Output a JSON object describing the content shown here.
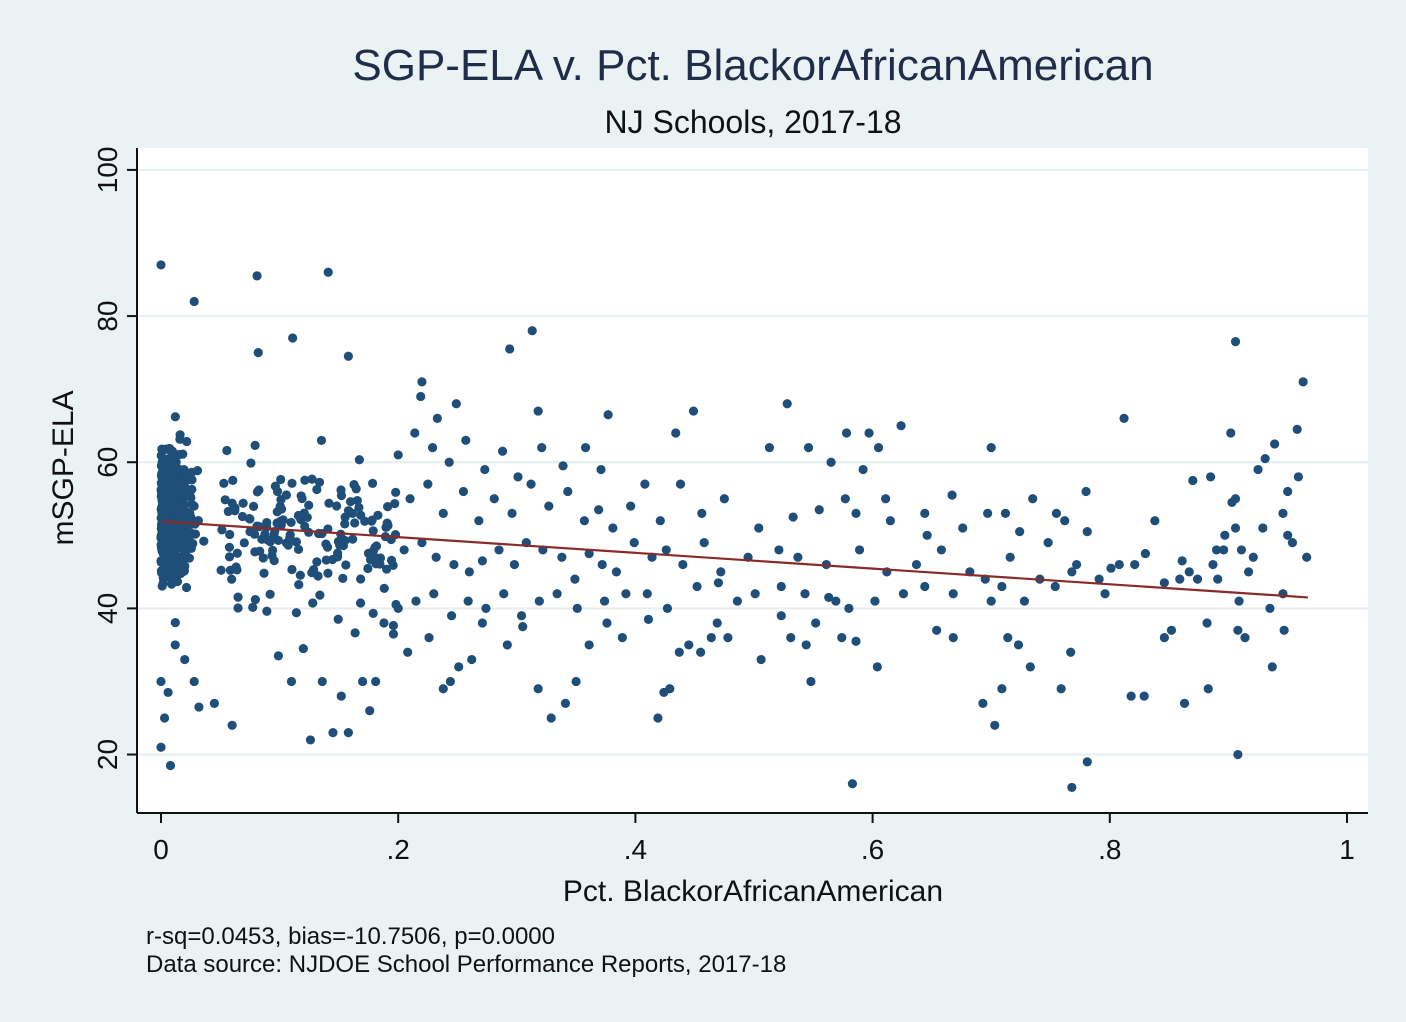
{
  "chart_data": {
    "type": "scatter",
    "title": "SGP-ELA v. Pct. BlackorAfricanAmerican",
    "subtitle": "NJ Schools, 2017-18",
    "xlabel": "Pct. BlackorAfricanAmerican",
    "ylabel": "mSGP-ELA",
    "xlim": [
      -0.02,
      1.02
    ],
    "ylim": [
      12,
      103
    ],
    "x_ticks": [
      {
        "value": 0,
        "label": "0"
      },
      {
        "value": 0.2,
        "label": ".2"
      },
      {
        "value": 0.4,
        "label": ".4"
      },
      {
        "value": 0.6,
        "label": ".6"
      },
      {
        "value": 0.8,
        "label": ".8"
      },
      {
        "value": 1,
        "label": "1"
      }
    ],
    "y_ticks": [
      {
        "value": 20,
        "label": "20"
      },
      {
        "value": 40,
        "label": "40"
      },
      {
        "value": 60,
        "label": "60"
      },
      {
        "value": 80,
        "label": "80"
      },
      {
        "value": 100,
        "label": "100"
      }
    ],
    "grid": true,
    "fit_line": {
      "x": [
        0,
        0.967
      ],
      "y": [
        51.9,
        41.5
      ],
      "color": "#8b2a2a"
    },
    "point_color": "#1f4e79",
    "notes": [
      "r-sq=0.0453, bias=-10.7506, p=0.0000",
      "Data source: NJDOE School Performance Reports, 2017-18"
    ],
    "points": [
      [
        0.0,
        87.0
      ],
      [
        0.081,
        85.5
      ],
      [
        0.141,
        86.0
      ],
      [
        0.028,
        82.0
      ],
      [
        0.313,
        78.0
      ],
      [
        0.111,
        77.0
      ],
      [
        0.906,
        76.5
      ],
      [
        0.294,
        75.5
      ],
      [
        0.082,
        75.0
      ],
      [
        0.158,
        74.5
      ],
      [
        0.963,
        71.0
      ],
      [
        0.22,
        71.0
      ],
      [
        0.528,
        68.0
      ],
      [
        0.449,
        67.0
      ],
      [
        0.318,
        67.0
      ],
      [
        0.377,
        66.5
      ],
      [
        0.812,
        66.0
      ],
      [
        0.624,
        65.0
      ],
      [
        0.958,
        64.5
      ],
      [
        0.434,
        64.0
      ],
      [
        0.578,
        64.0
      ],
      [
        0.597,
        64.0
      ],
      [
        0.902,
        64.0
      ],
      [
        0.939,
        62.5
      ],
      [
        0.7,
        62.0
      ],
      [
        0.513,
        62.0
      ],
      [
        0.546,
        62.0
      ],
      [
        0.605,
        62.0
      ],
      [
        0.358,
        62.0
      ],
      [
        0.931,
        60.5
      ],
      [
        0.565,
        60.0
      ],
      [
        0.925,
        59.0
      ],
      [
        0.592,
        59.0
      ],
      [
        0.371,
        59.0
      ],
      [
        0.95,
        56.0
      ],
      [
        0.78,
        56.0
      ],
      [
        0.667,
        55.5
      ],
      [
        0.906,
        55.0
      ],
      [
        0.611,
        55.0
      ],
      [
        0.735,
        55.0
      ],
      [
        0.577,
        55.0
      ],
      [
        0.903,
        54.5
      ],
      [
        0.87,
        57.5
      ],
      [
        0.885,
        58.0
      ],
      [
        0.959,
        58.0
      ],
      [
        0.838,
        52.0
      ],
      [
        0.781,
        50.5
      ],
      [
        0.755,
        53.0
      ],
      [
        0.946,
        53.0
      ],
      [
        0.644,
        53.0
      ],
      [
        0.697,
        53.0
      ],
      [
        0.712,
        53.0
      ],
      [
        0.887,
        46.0
      ],
      [
        0.896,
        48.0
      ],
      [
        0.911,
        48.0
      ],
      [
        0.921,
        47.0
      ],
      [
        0.95,
        50.0
      ],
      [
        0.906,
        51.0
      ],
      [
        0.966,
        47.0
      ],
      [
        0.929,
        51.0
      ],
      [
        0.89,
        48.0
      ],
      [
        0.897,
        50.0
      ],
      [
        0.917,
        45.0
      ],
      [
        0.954,
        49.0
      ],
      [
        0.867,
        45.0
      ],
      [
        0.859,
        44.0
      ],
      [
        0.891,
        44.0
      ],
      [
        0.821,
        46.0
      ],
      [
        0.808,
        46.0
      ],
      [
        0.846,
        43.5
      ],
      [
        0.791,
        44.0
      ],
      [
        0.796,
        42.0
      ],
      [
        0.874,
        44.0
      ],
      [
        0.768,
        45.0
      ],
      [
        0.741,
        44.0
      ],
      [
        0.709,
        43.0
      ],
      [
        0.695,
        44.0
      ],
      [
        0.668,
        42.0
      ],
      [
        0.644,
        43.0
      ],
      [
        0.626,
        42.0
      ],
      [
        0.602,
        41.0
      ],
      [
        0.569,
        41.0
      ],
      [
        0.543,
        42.0
      ],
      [
        0.523,
        43.0
      ],
      [
        0.501,
        42.0
      ],
      [
        0.486,
        41.0
      ],
      [
        0.47,
        43.5
      ],
      [
        0.452,
        43.0
      ],
      [
        0.427,
        40.0
      ],
      [
        0.41,
        42.0
      ],
      [
        0.392,
        42.0
      ],
      [
        0.374,
        41.0
      ],
      [
        0.7,
        41.0
      ],
      [
        0.728,
        41.0
      ],
      [
        0.754,
        43.0
      ],
      [
        0.935,
        40.0
      ],
      [
        0.946,
        42.0
      ],
      [
        0.909,
        41.0
      ],
      [
        0.846,
        36.0
      ],
      [
        0.882,
        38.0
      ],
      [
        0.852,
        37.0
      ],
      [
        0.908,
        37.0
      ],
      [
        0.914,
        36.0
      ],
      [
        0.947,
        37.0
      ],
      [
        0.937,
        32.0
      ],
      [
        0.883,
        29.0
      ],
      [
        0.863,
        27.0
      ],
      [
        0.829,
        28.0
      ],
      [
        0.818,
        28.0
      ],
      [
        0.767,
        34.0
      ],
      [
        0.781,
        19.0
      ],
      [
        0.768,
        15.5
      ],
      [
        0.908,
        20.0
      ],
      [
        0.693,
        27.0
      ],
      [
        0.703,
        24.0
      ],
      [
        0.709,
        29.0
      ],
      [
        0.714,
        36.0
      ],
      [
        0.723,
        35.0
      ],
      [
        0.733,
        32.0
      ],
      [
        0.759,
        29.0
      ],
      [
        0.654,
        37.0
      ],
      [
        0.668,
        36.0
      ],
      [
        0.604,
        32.0
      ],
      [
        0.58,
        40.0
      ],
      [
        0.586,
        35.5
      ],
      [
        0.583,
        16.0
      ],
      [
        0.574,
        36.0
      ],
      [
        0.563,
        41.5
      ],
      [
        0.552,
        38.0
      ],
      [
        0.544,
        35.0
      ],
      [
        0.548,
        30.0
      ],
      [
        0.531,
        36.0
      ],
      [
        0.523,
        39.0
      ],
      [
        0.506,
        33.0
      ],
      [
        0.464,
        36.0
      ],
      [
        0.469,
        38.0
      ],
      [
        0.478,
        36.0
      ],
      [
        0.455,
        34.0
      ],
      [
        0.445,
        35.0
      ],
      [
        0.437,
        34.0
      ],
      [
        0.429,
        29.0
      ],
      [
        0.424,
        28.5
      ],
      [
        0.419,
        25.0
      ],
      [
        0.411,
        38.5
      ],
      [
        0.389,
        36.0
      ],
      [
        0.376,
        38.0
      ],
      [
        0.361,
        35.0
      ],
      [
        0.35,
        30.0
      ],
      [
        0.341,
        27.0
      ],
      [
        0.329,
        25.0
      ],
      [
        0.318,
        29.0
      ],
      [
        0.305,
        37.5
      ],
      [
        0.292,
        35.0
      ],
      [
        0.271,
        38.0
      ],
      [
        0.262,
        33.0
      ],
      [
        0.251,
        32.0
      ],
      [
        0.244,
        30.0
      ],
      [
        0.238,
        29.0
      ],
      [
        0.226,
        36.0
      ],
      [
        0.208,
        34.0
      ],
      [
        0.196,
        36.5
      ],
      [
        0.188,
        38.0
      ],
      [
        0.181,
        30.0
      ],
      [
        0.176,
        26.0
      ],
      [
        0.17,
        30.0
      ],
      [
        0.158,
        23.0
      ],
      [
        0.145,
        23.0
      ],
      [
        0.126,
        22.0
      ],
      [
        0.152,
        28.0
      ],
      [
        0.136,
        30.0
      ],
      [
        0.12,
        34.5
      ],
      [
        0.11,
        30.0
      ],
      [
        0.099,
        33.5
      ],
      [
        0.06,
        24.0
      ],
      [
        0.045,
        27.0
      ],
      [
        0.032,
        26.5
      ],
      [
        0.028,
        30.0
      ],
      [
        0.02,
        33.0
      ],
      [
        0.008,
        18.5
      ],
      [
        0.0,
        21.0
      ],
      [
        0.003,
        25.0
      ],
      [
        0.006,
        28.5
      ],
      [
        0.0,
        30.0
      ],
      [
        0.012,
        35.0
      ],
      [
        0.205,
        48.0
      ],
      [
        0.22,
        49.0
      ],
      [
        0.232,
        47.0
      ],
      [
        0.247,
        46.0
      ],
      [
        0.26,
        45.0
      ],
      [
        0.271,
        46.5
      ],
      [
        0.285,
        48.0
      ],
      [
        0.298,
        46.0
      ],
      [
        0.308,
        49.0
      ],
      [
        0.322,
        48.0
      ],
      [
        0.338,
        47.0
      ],
      [
        0.349,
        44.0
      ],
      [
        0.361,
        47.5
      ],
      [
        0.372,
        46.0
      ],
      [
        0.384,
        45.0
      ],
      [
        0.399,
        49.0
      ],
      [
        0.414,
        47.0
      ],
      [
        0.426,
        48.0
      ],
      [
        0.44,
        46.0
      ],
      [
        0.458,
        49.0
      ],
      [
        0.472,
        45.0
      ],
      [
        0.495,
        47.0
      ],
      [
        0.521,
        48.0
      ],
      [
        0.537,
        47.0
      ],
      [
        0.561,
        46.0
      ],
      [
        0.589,
        48.0
      ],
      [
        0.612,
        45.0
      ],
      [
        0.637,
        46.0
      ],
      [
        0.658,
        48.0
      ],
      [
        0.682,
        45.0
      ],
      [
        0.716,
        47.0
      ],
      [
        0.748,
        49.0
      ],
      [
        0.772,
        46.0
      ],
      [
        0.801,
        45.5
      ],
      [
        0.83,
        47.5
      ],
      [
        0.861,
        46.5
      ],
      [
        0.21,
        55.0
      ],
      [
        0.225,
        57.0
      ],
      [
        0.238,
        53.0
      ],
      [
        0.255,
        56.0
      ],
      [
        0.268,
        52.0
      ],
      [
        0.281,
        55.0
      ],
      [
        0.296,
        53.0
      ],
      [
        0.312,
        57.0
      ],
      [
        0.327,
        54.0
      ],
      [
        0.343,
        56.0
      ],
      [
        0.357,
        52.0
      ],
      [
        0.369,
        53.5
      ],
      [
        0.381,
        51.0
      ],
      [
        0.396,
        54.0
      ],
      [
        0.408,
        57.0
      ],
      [
        0.421,
        52.0
      ],
      [
        0.438,
        57.0
      ],
      [
        0.456,
        53.0
      ],
      [
        0.475,
        55.0
      ],
      [
        0.504,
        51.0
      ],
      [
        0.533,
        52.5
      ],
      [
        0.555,
        53.5
      ],
      [
        0.586,
        53.0
      ],
      [
        0.615,
        52.0
      ],
      [
        0.646,
        50.0
      ],
      [
        0.676,
        51.0
      ],
      [
        0.724,
        50.5
      ],
      [
        0.762,
        52.0
      ],
      [
        0.2,
        61.0
      ],
      [
        0.214,
        64.0
      ],
      [
        0.229,
        62.0
      ],
      [
        0.243,
        60.0
      ],
      [
        0.257,
        63.0
      ],
      [
        0.273,
        59.0
      ],
      [
        0.288,
        61.5
      ],
      [
        0.301,
        58.0
      ],
      [
        0.321,
        62.0
      ],
      [
        0.339,
        59.5
      ],
      [
        0.219,
        69.0
      ],
      [
        0.233,
        66.0
      ],
      [
        0.249,
        68.0
      ],
      [
        0.2,
        40.0
      ],
      [
        0.215,
        41.0
      ],
      [
        0.23,
        42.0
      ],
      [
        0.245,
        39.0
      ],
      [
        0.259,
        41.0
      ],
      [
        0.274,
        40.0
      ],
      [
        0.289,
        42.0
      ],
      [
        0.304,
        39.0
      ],
      [
        0.319,
        41.0
      ],
      [
        0.334,
        42.0
      ],
      [
        0.351,
        40.0
      ]
    ]
  }
}
